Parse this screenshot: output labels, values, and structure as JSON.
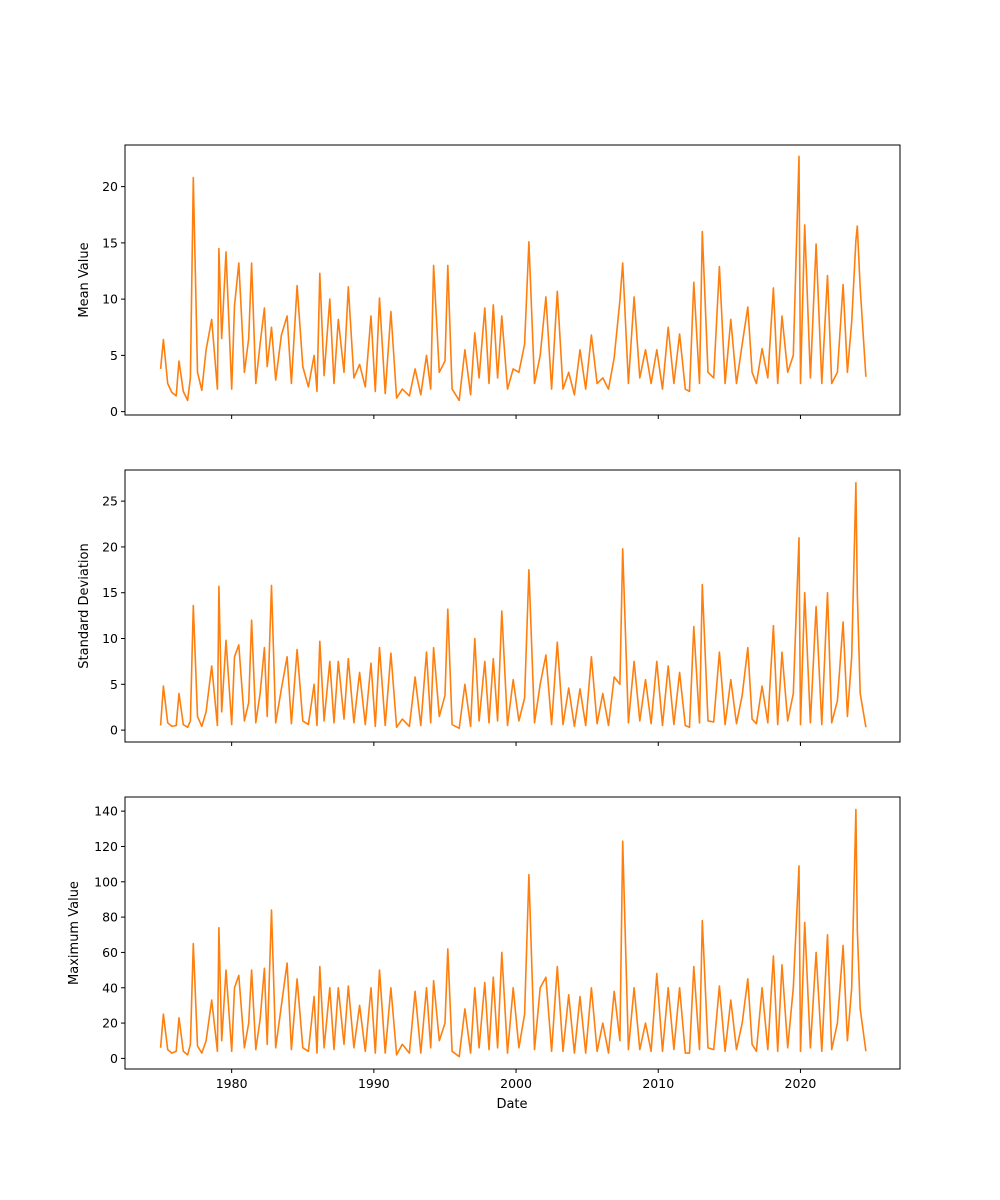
{
  "figure": {
    "series_color": "#ff7f0e",
    "shared_x_axis_label": "Date"
  },
  "chart_data": [
    {
      "type": "line",
      "ylabel": "Mean Value",
      "xlabel": "",
      "xlim": [
        1972.5,
        2027.0
      ],
      "ylim": [
        -0.3,
        23.7
      ],
      "yticks": [
        0,
        5,
        10,
        15,
        20
      ],
      "xticks": [
        1980,
        1990,
        2000,
        2010,
        2020
      ],
      "xtick_labels_visible": false,
      "grid": false,
      "x": [
        1975.0,
        1975.2,
        1975.5,
        1975.8,
        1976.1,
        1976.3,
        1976.6,
        1976.9,
        1977.1,
        1977.3,
        1977.6,
        1977.9,
        1978.2,
        1978.6,
        1979.0,
        1979.1,
        1979.3,
        1979.6,
        1980.0,
        1980.2,
        1980.5,
        1980.9,
        1981.2,
        1981.4,
        1981.7,
        1982.0,
        1982.3,
        1982.5,
        1982.8,
        1983.1,
        1983.5,
        1983.9,
        1984.2,
        1984.6,
        1985.0,
        1985.4,
        1985.8,
        1986.0,
        1986.2,
        1986.5,
        1986.9,
        1987.2,
        1987.5,
        1987.9,
        1988.2,
        1988.6,
        1989.0,
        1989.4,
        1989.8,
        1990.1,
        1990.4,
        1990.8,
        1991.2,
        1991.6,
        1992.0,
        1992.5,
        1992.9,
        1993.3,
        1993.7,
        1994.0,
        1994.2,
        1994.6,
        1995.0,
        1995.2,
        1995.5,
        1996.0,
        1996.4,
        1996.8,
        1997.1,
        1997.4,
        1997.8,
        1998.1,
        1998.4,
        1998.7,
        1999.0,
        1999.4,
        1999.8,
        2000.2,
        2000.6,
        2000.9,
        2001.3,
        2001.7,
        2002.1,
        2002.5,
        2002.9,
        2003.3,
        2003.7,
        2004.1,
        2004.5,
        2004.9,
        2005.3,
        2005.7,
        2006.1,
        2006.5,
        2006.9,
        2007.3,
        2007.5,
        2007.9,
        2008.3,
        2008.7,
        2009.1,
        2009.5,
        2009.9,
        2010.3,
        2010.7,
        2011.1,
        2011.5,
        2011.9,
        2012.2,
        2012.5,
        2012.9,
        2013.1,
        2013.5,
        2013.9,
        2014.3,
        2014.7,
        2015.1,
        2015.5,
        2015.9,
        2016.3,
        2016.6,
        2016.9,
        2017.3,
        2017.7,
        2018.1,
        2018.4,
        2018.7,
        2019.1,
        2019.5,
        2019.9,
        2020.0,
        2020.3,
        2020.7,
        2021.1,
        2021.5,
        2021.9,
        2022.2,
        2022.6,
        2023.0,
        2023.3,
        2023.6,
        2023.9,
        2024.0,
        2024.2,
        2024.6
      ],
      "y": [
        3.8,
        6.4,
        2.5,
        1.7,
        1.4,
        4.5,
        1.8,
        1.0,
        3.0,
        20.8,
        3.5,
        1.9,
        5.5,
        8.2,
        2.0,
        14.5,
        6.5,
        14.2,
        2.0,
        9.4,
        13.2,
        3.5,
        6.5,
        13.2,
        2.5,
        6.0,
        9.2,
        4.0,
        7.5,
        2.8,
        6.8,
        8.5,
        2.5,
        11.2,
        4.0,
        2.2,
        5.0,
        1.8,
        12.3,
        3.2,
        10.0,
        2.5,
        8.2,
        3.5,
        11.1,
        3.0,
        4.2,
        2.2,
        8.5,
        1.8,
        10.1,
        1.6,
        8.9,
        1.2,
        2.0,
        1.4,
        3.8,
        1.5,
        5.0,
        2.0,
        13.0,
        3.5,
        4.5,
        13.0,
        2.0,
        1.0,
        5.5,
        1.5,
        7.0,
        3.0,
        9.2,
        2.5,
        9.5,
        3.0,
        8.5,
        2.0,
        3.8,
        3.5,
        6.0,
        15.1,
        2.5,
        5.0,
        10.2,
        2.0,
        10.7,
        2.0,
        3.5,
        1.5,
        5.5,
        2.0,
        6.8,
        2.5,
        3.0,
        2.0,
        4.8,
        9.9,
        13.2,
        2.5,
        10.2,
        3.0,
        5.5,
        2.5,
        5.5,
        2.0,
        7.5,
        2.5,
        6.9,
        2.0,
        1.8,
        11.5,
        2.5,
        16.0,
        3.5,
        3.0,
        12.9,
        2.5,
        8.2,
        2.5,
        6.0,
        9.3,
        3.5,
        2.5,
        5.6,
        3.0,
        11.0,
        2.5,
        8.5,
        3.5,
        5.0,
        22.7,
        2.5,
        16.6,
        3.0,
        14.9,
        2.5,
        12.1,
        2.5,
        3.5,
        11.3,
        3.5,
        8.0,
        15.2,
        16.5,
        11.0,
        3.1
      ]
    },
    {
      "type": "line",
      "ylabel": "Standard Deviation",
      "xlabel": "",
      "xlim": [
        1972.5,
        2027.0
      ],
      "ylim": [
        -1.3,
        28.4
      ],
      "yticks": [
        0,
        5,
        10,
        15,
        20,
        25
      ],
      "xticks": [
        1980,
        1990,
        2000,
        2010,
        2020
      ],
      "xtick_labels_visible": false,
      "grid": false,
      "x": [
        1975.0,
        1975.2,
        1975.5,
        1975.8,
        1976.1,
        1976.3,
        1976.6,
        1976.9,
        1977.1,
        1977.3,
        1977.6,
        1977.9,
        1978.2,
        1978.6,
        1979.0,
        1979.1,
        1979.3,
        1979.6,
        1980.0,
        1980.2,
        1980.5,
        1980.9,
        1981.2,
        1981.4,
        1981.7,
        1982.0,
        1982.3,
        1982.5,
        1982.8,
        1983.1,
        1983.5,
        1983.9,
        1984.2,
        1984.6,
        1985.0,
        1985.4,
        1985.8,
        1986.0,
        1986.2,
        1986.5,
        1986.9,
        1987.2,
        1987.5,
        1987.9,
        1988.2,
        1988.6,
        1989.0,
        1989.4,
        1989.8,
        1990.1,
        1990.4,
        1990.8,
        1991.2,
        1991.6,
        1992.0,
        1992.5,
        1992.9,
        1993.3,
        1993.7,
        1994.0,
        1994.2,
        1994.6,
        1995.0,
        1995.2,
        1995.5,
        1996.0,
        1996.4,
        1996.8,
        1997.1,
        1997.4,
        1997.8,
        1998.1,
        1998.4,
        1998.7,
        1999.0,
        1999.4,
        1999.8,
        2000.2,
        2000.6,
        2000.9,
        2001.3,
        2001.7,
        2002.1,
        2002.5,
        2002.9,
        2003.3,
        2003.7,
        2004.1,
        2004.5,
        2004.9,
        2005.3,
        2005.7,
        2006.1,
        2006.5,
        2006.9,
        2007.3,
        2007.5,
        2007.9,
        2008.3,
        2008.7,
        2009.1,
        2009.5,
        2009.9,
        2010.3,
        2010.7,
        2011.1,
        2011.5,
        2011.9,
        2012.2,
        2012.5,
        2012.9,
        2013.1,
        2013.5,
        2013.9,
        2014.3,
        2014.7,
        2015.1,
        2015.5,
        2015.9,
        2016.3,
        2016.6,
        2016.9,
        2017.3,
        2017.7,
        2018.1,
        2018.4,
        2018.7,
        2019.1,
        2019.5,
        2019.9,
        2020.0,
        2020.3,
        2020.7,
        2021.1,
        2021.5,
        2021.9,
        2022.2,
        2022.6,
        2023.0,
        2023.3,
        2023.6,
        2023.9,
        2024.0,
        2024.2,
        2024.6
      ],
      "y": [
        0.5,
        4.8,
        0.8,
        0.4,
        0.5,
        4.0,
        0.6,
        0.3,
        1.0,
        13.6,
        1.5,
        0.4,
        2.0,
        7.0,
        0.5,
        15.7,
        2.0,
        9.8,
        0.6,
        8.0,
        9.3,
        1.0,
        3.0,
        12.0,
        0.8,
        4.0,
        9.0,
        1.5,
        15.8,
        0.8,
        4.5,
        8.0,
        0.7,
        8.8,
        1.0,
        0.6,
        5.0,
        0.5,
        9.7,
        1.0,
        7.5,
        0.8,
        7.5,
        1.2,
        7.8,
        0.8,
        6.3,
        0.6,
        7.3,
        0.4,
        9.0,
        0.5,
        8.4,
        0.3,
        1.2,
        0.4,
        5.8,
        0.5,
        8.5,
        0.8,
        9.0,
        1.5,
        3.8,
        13.2,
        0.6,
        0.2,
        5.0,
        0.4,
        10.0,
        1.0,
        7.5,
        0.8,
        7.8,
        1.0,
        13.0,
        0.5,
        5.5,
        1.0,
        3.5,
        17.5,
        0.8,
        5.0,
        8.2,
        0.6,
        9.6,
        0.6,
        4.6,
        0.4,
        4.5,
        0.5,
        8.0,
        0.7,
        4.0,
        0.5,
        5.8,
        5.0,
        19.8,
        0.8,
        7.5,
        1.0,
        5.5,
        0.7,
        7.5,
        0.5,
        7.0,
        0.6,
        6.3,
        0.5,
        0.3,
        11.3,
        0.8,
        15.9,
        1.0,
        0.9,
        8.5,
        0.6,
        5.5,
        0.7,
        3.8,
        9.0,
        1.2,
        0.7,
        4.8,
        0.8,
        11.4,
        0.6,
        8.5,
        1.0,
        4.0,
        21.0,
        0.6,
        15.0,
        0.8,
        13.5,
        0.6,
        15.0,
        0.8,
        3.2,
        11.8,
        1.5,
        8.0,
        27.0,
        15.0,
        4.0,
        0.3
      ]
    },
    {
      "type": "line",
      "ylabel": "Maximum Value",
      "xlabel": "Date",
      "xlim": [
        1972.5,
        2027.0
      ],
      "ylim": [
        -6,
        148
      ],
      "yticks": [
        0,
        20,
        40,
        60,
        80,
        100,
        120,
        140
      ],
      "xticks": [
        1980,
        1990,
        2000,
        2010,
        2020
      ],
      "xtick_labels_visible": true,
      "grid": false,
      "x": [
        1975.0,
        1975.2,
        1975.5,
        1975.8,
        1976.1,
        1976.3,
        1976.6,
        1976.9,
        1977.1,
        1977.3,
        1977.6,
        1977.9,
        1978.2,
        1978.6,
        1979.0,
        1979.1,
        1979.3,
        1979.6,
        1980.0,
        1980.2,
        1980.5,
        1980.9,
        1981.2,
        1981.4,
        1981.7,
        1982.0,
        1982.3,
        1982.5,
        1982.8,
        1983.1,
        1983.5,
        1983.9,
        1984.2,
        1984.6,
        1985.0,
        1985.4,
        1985.8,
        1986.0,
        1986.2,
        1986.5,
        1986.9,
        1987.2,
        1987.5,
        1987.9,
        1988.2,
        1988.6,
        1989.0,
        1989.4,
        1989.8,
        1990.1,
        1990.4,
        1990.8,
        1991.2,
        1991.6,
        1992.0,
        1992.5,
        1992.9,
        1993.3,
        1993.7,
        1994.0,
        1994.2,
        1994.6,
        1995.0,
        1995.2,
        1995.5,
        1996.0,
        1996.4,
        1996.8,
        1997.1,
        1997.4,
        1997.8,
        1998.1,
        1998.4,
        1998.7,
        1999.0,
        1999.4,
        1999.8,
        2000.2,
        2000.6,
        2000.9,
        2001.3,
        2001.7,
        2002.1,
        2002.5,
        2002.9,
        2003.3,
        2003.7,
        2004.1,
        2004.5,
        2004.9,
        2005.3,
        2005.7,
        2006.1,
        2006.5,
        2006.9,
        2007.3,
        2007.5,
        2007.9,
        2008.3,
        2008.7,
        2009.1,
        2009.5,
        2009.9,
        2010.3,
        2010.7,
        2011.1,
        2011.5,
        2011.9,
        2012.2,
        2012.5,
        2012.9,
        2013.1,
        2013.5,
        2013.9,
        2014.3,
        2014.7,
        2015.1,
        2015.5,
        2015.9,
        2016.3,
        2016.6,
        2016.9,
        2017.3,
        2017.7,
        2018.1,
        2018.4,
        2018.7,
        2019.1,
        2019.5,
        2019.9,
        2020.0,
        2020.3,
        2020.7,
        2021.1,
        2021.5,
        2021.9,
        2022.2,
        2022.6,
        2023.0,
        2023.3,
        2023.6,
        2023.9,
        2024.0,
        2024.2,
        2024.6
      ],
      "y": [
        6,
        25,
        5,
        3,
        4,
        23,
        4,
        2,
        8,
        65,
        7,
        3,
        10,
        33,
        4,
        74,
        10,
        50,
        4,
        40,
        47,
        6,
        20,
        50,
        5,
        22,
        51,
        8,
        84,
        6,
        30,
        54,
        5,
        45,
        6,
        4,
        35,
        3,
        52,
        6,
        40,
        5,
        40,
        8,
        41,
        6,
        30,
        4,
        40,
        3,
        50,
        3,
        40,
        2,
        8,
        3,
        38,
        3,
        40,
        6,
        44,
        10,
        20,
        62,
        4,
        1,
        28,
        3,
        40,
        6,
        43,
        5,
        46,
        6,
        60,
        3,
        40,
        6,
        25,
        104,
        5,
        40,
        46,
        4,
        52,
        4,
        36,
        3,
        35,
        3,
        40,
        4,
        20,
        3,
        38,
        10,
        123,
        5,
        40,
        5,
        20,
        4,
        48,
        4,
        40,
        5,
        40,
        3,
        3,
        52,
        5,
        78,
        6,
        5,
        41,
        4,
        33,
        5,
        20,
        45,
        8,
        4,
        40,
        5,
        58,
        4,
        53,
        6,
        40,
        109,
        4,
        77,
        6,
        60,
        4,
        70,
        5,
        20,
        64,
        10,
        40,
        141,
        73,
        28,
        4
      ]
    }
  ]
}
